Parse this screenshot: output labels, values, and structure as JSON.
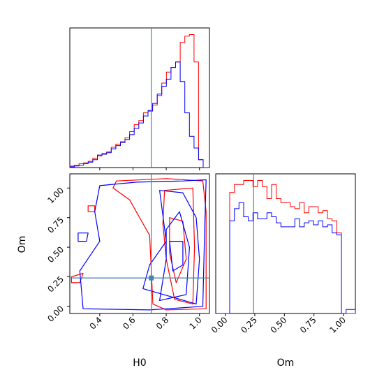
{
  "figure": {
    "type": "corner-plot",
    "parameters": [
      "H0",
      "Om"
    ],
    "truths": {
      "H0": 0.71,
      "Om": 0.24
    },
    "truth_color": "#4682b4",
    "series_colors": {
      "red": "#ff0000",
      "blue": "#0000ff"
    }
  },
  "axes": {
    "h0_label": "H0",
    "om_label": "Om",
    "h0_ticks": [
      "0.4",
      "0.6",
      "0.8",
      "1.0"
    ],
    "om_ticks": [
      "0.00",
      "0.25",
      "0.50",
      "0.75",
      "1.00"
    ]
  },
  "chart_data": [
    {
      "type": "bar",
      "panel": "H0 marginal histogram",
      "xlabel": "",
      "xlim": [
        0.22,
        1.06
      ],
      "series": [
        {
          "color": "#ff0000",
          "bins": [
            0.22,
            1.05
          ],
          "values": [
            2,
            3,
            5,
            6,
            8,
            12,
            15,
            18,
            20,
            26,
            30,
            33,
            38,
            46,
            55,
            60,
            70,
            72,
            80,
            92,
            108,
            122,
            128,
            135,
            160,
            168,
            170,
            135,
            10,
            0
          ]
        },
        {
          "color": "#0000ff",
          "bins": [
            0.22,
            1.05
          ],
          "values": [
            1,
            2,
            3,
            5,
            7,
            10,
            16,
            17,
            19,
            24,
            28,
            32,
            36,
            42,
            50,
            57,
            66,
            73,
            82,
            94,
            104,
            113,
            128,
            135,
            110,
            70,
            40,
            25,
            10,
            0
          ]
        }
      ]
    },
    {
      "type": "bar",
      "panel": "Om marginal histogram",
      "xlabel": "Om",
      "xlim": [
        -0.08,
        1.1
      ],
      "series": [
        {
          "color": "#ff0000",
          "bins": [
            -0.08,
            1.1
          ],
          "values": [
            0,
            0,
            0,
            60,
            64,
            64,
            66,
            66,
            63,
            66,
            63,
            57,
            64,
            57,
            55,
            55,
            53,
            52,
            55,
            50,
            53,
            53,
            50,
            51,
            47,
            46,
            40,
            0,
            0,
            0
          ]
        },
        {
          "color": "#0000ff",
          "bins": [
            -0.08,
            1.1
          ],
          "values": [
            0,
            0,
            0,
            46,
            52,
            55,
            48,
            46,
            50,
            47,
            47,
            50,
            48,
            45,
            43,
            43,
            43,
            47,
            43,
            45,
            46,
            44,
            46,
            43,
            44,
            40,
            39,
            0,
            2,
            2
          ]
        }
      ]
    },
    {
      "type": "contour",
      "panel": "H0 vs Om joint",
      "xlabel": "H0",
      "ylabel": "Om",
      "xlim": [
        0.22,
        1.06
      ],
      "ylim": [
        -0.06,
        1.12
      ],
      "series": [
        {
          "color": "#ff0000",
          "contours": [
            [
              [
                0.5,
                1.06
              ],
              [
                0.8,
                1.08
              ],
              [
                1.02,
                1.06
              ],
              [
                1.04,
                0.8
              ],
              [
                1.04,
                -0.02
              ],
              [
                0.8,
                -0.03
              ],
              [
                0.72,
                0.02
              ],
              [
                0.7,
                0.6
              ],
              [
                0.58,
                0.9
              ],
              [
                0.48,
                1.0
              ]
            ],
            [
              [
                0.79,
                0.98
              ],
              [
                0.96,
                1.0
              ],
              [
                0.97,
                0.5
              ],
              [
                0.96,
                0.02
              ],
              [
                0.85,
                0.06
              ],
              [
                0.8,
                0.4
              ],
              [
                0.78,
                0.7
              ]
            ],
            [
              [
                0.82,
                0.75
              ],
              [
                0.9,
                0.72
              ],
              [
                0.92,
                0.4
              ],
              [
                0.86,
                0.2
              ],
              [
                0.82,
                0.45
              ]
            ],
            [
              [
                0.33,
                0.85
              ],
              [
                0.37,
                0.85
              ],
              [
                0.37,
                0.8
              ],
              [
                0.33,
                0.8
              ]
            ],
            [
              [
                0.23,
                0.25
              ],
              [
                0.3,
                0.28
              ],
              [
                0.28,
                0.2
              ],
              [
                0.23,
                0.2
              ]
            ]
          ]
        },
        {
          "color": "#0000ff",
          "contours": [
            [
              [
                0.4,
                1.02
              ],
              [
                0.62,
                1.05
              ],
              [
                0.9,
                1.06
              ],
              [
                1.04,
                1.07
              ],
              [
                1.03,
                0.6
              ],
              [
                1.02,
                0.0
              ],
              [
                0.7,
                -0.03
              ],
              [
                0.3,
                -0.02
              ],
              [
                0.28,
                0.3
              ],
              [
                0.4,
                0.55
              ],
              [
                0.37,
                0.8
              ]
            ],
            [
              [
                0.66,
                0.15
              ],
              [
                0.98,
                0.02
              ],
              [
                1.0,
                0.4
              ],
              [
                0.98,
                0.75
              ],
              [
                0.9,
                0.96
              ],
              [
                0.76,
                0.98
              ],
              [
                0.8,
                0.55
              ],
              [
                0.7,
                0.35
              ]
            ],
            [
              [
                0.76,
                0.05
              ],
              [
                0.92,
                0.1
              ],
              [
                0.94,
                0.5
              ],
              [
                0.88,
                0.8
              ],
              [
                0.8,
                0.65
              ],
              [
                0.8,
                0.4
              ]
            ],
            [
              [
                0.82,
                0.55
              ],
              [
                0.9,
                0.55
              ],
              [
                0.9,
                0.35
              ],
              [
                0.84,
                0.3
              ]
            ],
            [
              [
                0.27,
                0.62
              ],
              [
                0.33,
                0.62
              ],
              [
                0.32,
                0.55
              ],
              [
                0.27,
                0.55
              ]
            ]
          ]
        }
      ]
    }
  ]
}
